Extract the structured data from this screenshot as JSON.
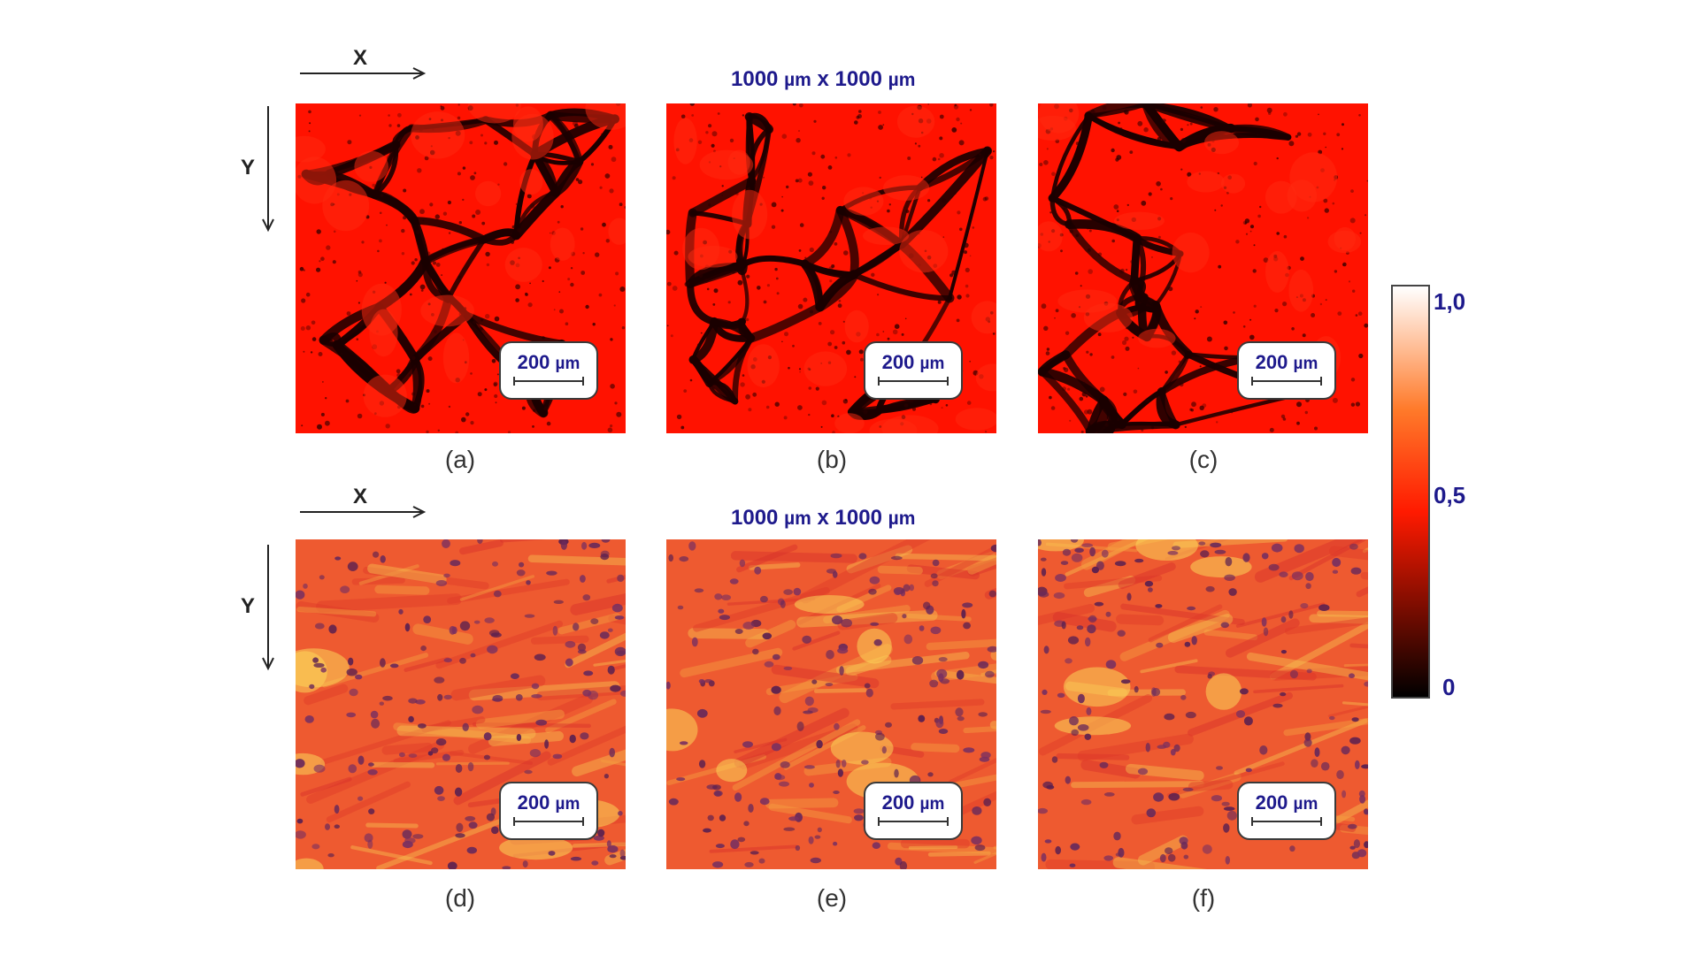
{
  "figure": {
    "field_label_top": {
      "value": "1000",
      "unit": "µm",
      "sep": "x",
      "value2": "1000",
      "unit2": "µm"
    },
    "field_label_bottom": {
      "value": "1000",
      "unit": "µm",
      "sep": "x",
      "value2": "1000",
      "unit2": "µm"
    },
    "axis_x_label": "X",
    "axis_y_label": "Y",
    "panels": [
      {
        "label": "(a)",
        "scale_value": "200",
        "scale_unit": "µm",
        "style": "polarization-map"
      },
      {
        "label": "(b)",
        "scale_value": "200",
        "scale_unit": "µm",
        "style": "polarization-map"
      },
      {
        "label": "(c)",
        "scale_value": "200",
        "scale_unit": "µm",
        "style": "polarization-map"
      },
      {
        "label": "(d)",
        "scale_value": "200",
        "scale_unit": "µm",
        "style": "histology"
      },
      {
        "label": "(e)",
        "scale_value": "200",
        "scale_unit": "µm",
        "style": "histology"
      },
      {
        "label": "(f)",
        "scale_value": "200",
        "scale_unit": "µm",
        "style": "histology"
      }
    ],
    "colorbar": {
      "ticks": [
        "1,0",
        "0,5",
        "0"
      ],
      "colors": [
        "#ffffff",
        "#ff7a2a",
        "#ff1a00",
        "#000000"
      ]
    }
  }
}
